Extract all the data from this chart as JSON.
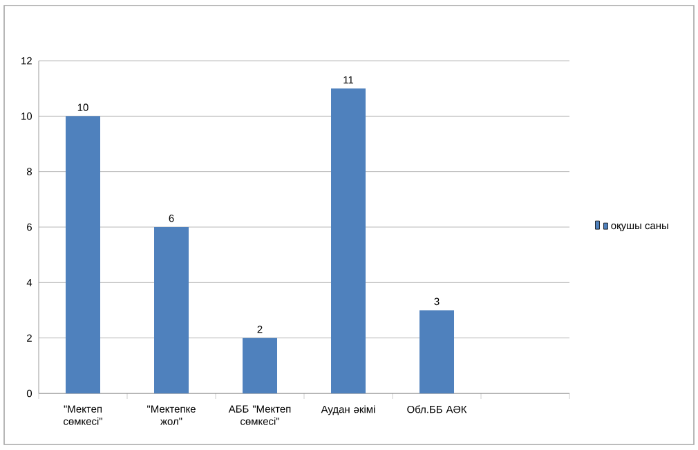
{
  "chart_data": {
    "type": "bar",
    "categories": [
      "\"Мектеп сөмкесі\"",
      "\"Мектепке жол\"",
      "АББ \"Мектеп сөмкесі\"",
      "Аудан әкімі",
      "Обл.ББ АӘК",
      null
    ],
    "series": [
      {
        "name": "оқушы саны",
        "color": "#4f81bd",
        "values": [
          10,
          6,
          2,
          11,
          3,
          null
        ]
      }
    ],
    "ylim": [
      0,
      12
    ],
    "yticks": [
      0,
      2,
      4,
      6,
      8,
      10,
      12
    ],
    "grid": "y",
    "legend": "right",
    "data_labels": true
  }
}
